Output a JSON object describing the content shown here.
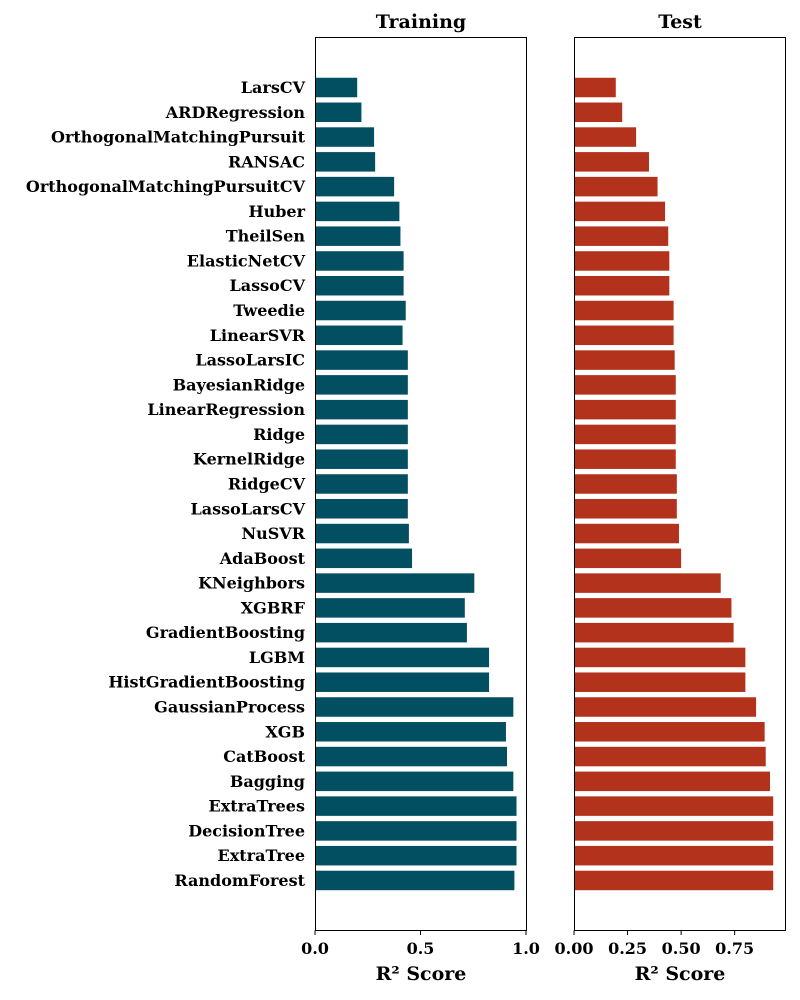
{
  "chart_data": [
    {
      "type": "bar",
      "orientation": "horizontal",
      "title": "Training",
      "xlabel": "R² Score",
      "xlim": [
        0,
        1.0
      ],
      "xticks": [
        "0.0",
        "0.5",
        "1.0"
      ],
      "color": "#034f62",
      "categories": [
        "LarsCV",
        "ARDRegression",
        "OrthogonalMatchingPursuit",
        "RANSAC",
        "OrthogonalMatchingPursuitCV",
        "Huber",
        "TheilSen",
        "ElasticNetCV",
        "LassoCV",
        "Tweedie",
        "LinearSVR",
        "LassoLarsIC",
        "BayesianRidge",
        "LinearRegression",
        "Ridge",
        "KernelRidge",
        "RidgeCV",
        "LassoLarsCV",
        "NuSVR",
        "AdaBoost",
        "KNeighbors",
        "XGBRF",
        "GradientBoosting",
        "LGBM",
        "HistGradientBoosting",
        "GaussianProcess",
        "XGB",
        "CatBoost",
        "Bagging",
        "ExtraTrees",
        "DecisionTree",
        "ExtraTree",
        "RandomForest"
      ],
      "values": [
        0.2,
        0.22,
        0.28,
        0.285,
        0.375,
        0.4,
        0.405,
        0.42,
        0.42,
        0.43,
        0.415,
        0.44,
        0.44,
        0.44,
        0.44,
        0.44,
        0.44,
        0.44,
        0.445,
        0.46,
        0.755,
        0.71,
        0.72,
        0.825,
        0.825,
        0.94,
        0.905,
        0.91,
        0.94,
        0.955,
        0.955,
        0.955,
        0.945
      ]
    },
    {
      "type": "bar",
      "orientation": "horizontal",
      "title": "Test",
      "xlabel": "R² Score",
      "xlim": [
        0,
        0.985
      ],
      "xticks": [
        "0.00",
        "0.25",
        "0.50",
        "0.75"
      ],
      "color": "#b2321c",
      "categories": [
        "LarsCV",
        "ARDRegression",
        "OrthogonalMatchingPursuit",
        "RANSAC",
        "OrthogonalMatchingPursuitCV",
        "Huber",
        "TheilSen",
        "ElasticNetCV",
        "LassoCV",
        "Tweedie",
        "LinearSVR",
        "LassoLarsIC",
        "BayesianRidge",
        "LinearRegression",
        "Ridge",
        "KernelRidge",
        "RidgeCV",
        "LassoLarsCV",
        "NuSVR",
        "AdaBoost",
        "KNeighbors",
        "XGBRF",
        "GradientBoosting",
        "LGBM",
        "HistGradientBoosting",
        "GaussianProcess",
        "XGB",
        "CatBoost",
        "Bagging",
        "ExtraTrees",
        "DecisionTree",
        "ExtraTree",
        "RandomForest"
      ],
      "values": [
        0.195,
        0.225,
        0.29,
        0.35,
        0.39,
        0.425,
        0.44,
        0.445,
        0.445,
        0.465,
        0.465,
        0.47,
        0.475,
        0.475,
        0.475,
        0.475,
        0.48,
        0.48,
        0.49,
        0.5,
        0.685,
        0.735,
        0.745,
        0.8,
        0.8,
        0.85,
        0.89,
        0.895,
        0.915,
        0.93,
        0.93,
        0.93,
        0.93
      ]
    }
  ]
}
